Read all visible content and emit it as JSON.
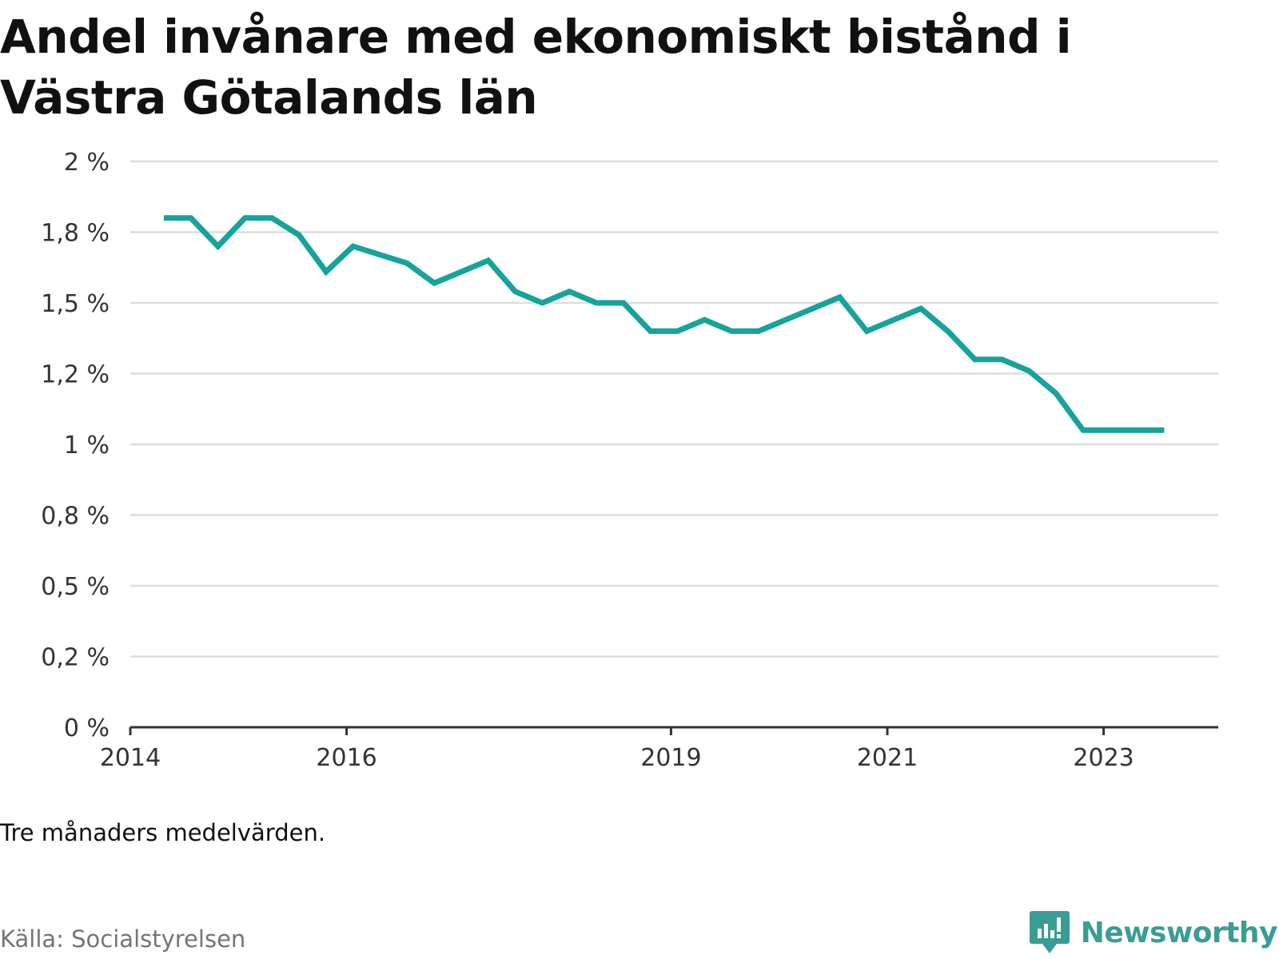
{
  "title": "Andel invånare med ekonomiskt bistånd i Västra Götalands län",
  "note": "Tre månaders medelvärden.",
  "source": "Källa: Socialstyrelsen",
  "brand": {
    "name": "Newsworthy",
    "icon": "newsworthy-logo-icon",
    "color": "#3a9d95"
  },
  "colors": {
    "line": "#16a39c",
    "grid": "#dddddd",
    "axis": "#333333"
  },
  "chart_data": {
    "type": "line",
    "title": "Andel invånare med ekonomiskt bistånd i Västra Götalands län",
    "xlabel": "",
    "ylabel": "",
    "x_ticks": [
      2014,
      2016,
      2019,
      2021,
      2023
    ],
    "x_range": [
      2014,
      2024.06
    ],
    "y_ticks": [
      0,
      0.25,
      0.5,
      0.75,
      1,
      1.25,
      1.5,
      1.75,
      2
    ],
    "y_tick_labels": [
      "0 %",
      "0,2 %",
      "0,5 %",
      "0,8 %",
      "1 %",
      "1,2 %",
      "1,5 %",
      "1,8 %",
      "2 %"
    ],
    "ylim": [
      0,
      2
    ],
    "grid": true,
    "series": [
      {
        "x": [
          2014.31,
          2014.56,
          2014.81,
          2015.06,
          2015.31,
          2015.56,
          2015.81,
          2016.06,
          2016.31,
          2016.56,
          2016.81,
          2017.06,
          2017.31,
          2017.56,
          2017.81,
          2018.06,
          2018.31,
          2018.56,
          2018.81,
          2019.06,
          2019.31,
          2019.56,
          2019.81,
          2020.06,
          2020.31,
          2020.56,
          2020.81,
          2021.06,
          2021.31,
          2021.56,
          2021.81,
          2022.06,
          2022.31,
          2022.56,
          2022.81,
          2023.06,
          2023.31,
          2023.56
        ],
        "values": [
          1.8,
          1.8,
          1.7,
          1.8,
          1.8,
          1.74,
          1.61,
          1.7,
          1.67,
          1.64,
          1.57,
          1.61,
          1.65,
          1.54,
          1.5,
          1.54,
          1.5,
          1.5,
          1.4,
          1.4,
          1.44,
          1.4,
          1.4,
          1.44,
          1.48,
          1.52,
          1.4,
          1.44,
          1.48,
          1.4,
          1.3,
          1.3,
          1.26,
          1.18,
          1.05,
          1.05,
          1.05,
          1.05
        ]
      }
    ]
  }
}
